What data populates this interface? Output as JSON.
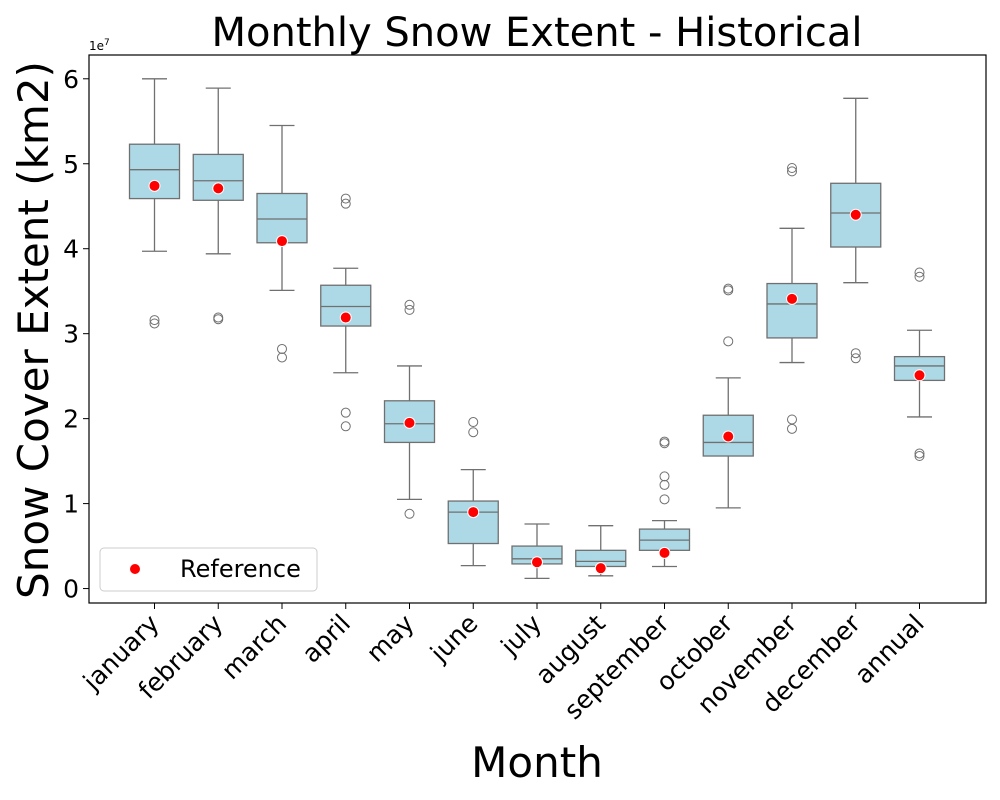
{
  "chart_data": {
    "type": "box",
    "title": "Monthly Snow Extent - Historical",
    "xlabel": "Month",
    "ylabel": "Snow Cover Extent (km2)",
    "y_multiplier": "1e7",
    "ylim": [
      -0.17,
      6.28
    ],
    "yticks": [
      0,
      1,
      2,
      3,
      4,
      5,
      6
    ],
    "grid": false,
    "legend": {
      "placement": "lower-left",
      "entries": [
        "Reference"
      ]
    },
    "colors": {
      "box_fill": "#add8e6",
      "box_edge": "#707070",
      "reference_marker": "#ff0000",
      "marker_edge": "#ffffff"
    },
    "categories": [
      "january",
      "february",
      "march",
      "april",
      "may",
      "june",
      "july",
      "august",
      "september",
      "october",
      "november",
      "december",
      "annual"
    ],
    "boxes": [
      {
        "whisker_low": 3.97,
        "q1": 4.59,
        "median": 4.93,
        "q3": 5.23,
        "whisker_high": 6.0,
        "outliers": [
          3.16,
          3.12
        ],
        "reference": 4.74
      },
      {
        "whisker_low": 3.94,
        "q1": 4.57,
        "median": 4.8,
        "q3": 5.11,
        "whisker_high": 5.89,
        "outliers": [
          3.19,
          3.17
        ],
        "reference": 4.71
      },
      {
        "whisker_low": 3.51,
        "q1": 4.07,
        "median": 4.35,
        "q3": 4.65,
        "whisker_high": 5.45,
        "outliers": [
          2.82,
          2.72
        ],
        "reference": 4.09
      },
      {
        "whisker_low": 2.54,
        "q1": 3.09,
        "median": 3.32,
        "q3": 3.57,
        "whisker_high": 3.77,
        "outliers": [
          4.59,
          4.53,
          2.07,
          1.91
        ],
        "reference": 3.19
      },
      {
        "whisker_low": 1.05,
        "q1": 1.72,
        "median": 1.94,
        "q3": 2.21,
        "whisker_high": 2.62,
        "outliers": [
          3.34,
          3.28,
          0.88
        ],
        "reference": 1.95
      },
      {
        "whisker_low": 0.27,
        "q1": 0.53,
        "median": 0.9,
        "q3": 1.03,
        "whisker_high": 1.4,
        "outliers": [
          1.96,
          1.84
        ],
        "reference": 0.9
      },
      {
        "whisker_low": 0.12,
        "q1": 0.29,
        "median": 0.35,
        "q3": 0.5,
        "whisker_high": 0.76,
        "outliers": [],
        "reference": 0.31
      },
      {
        "whisker_low": 0.15,
        "q1": 0.26,
        "median": 0.32,
        "q3": 0.45,
        "whisker_high": 0.74,
        "outliers": [],
        "reference": 0.24
      },
      {
        "whisker_low": 0.26,
        "q1": 0.45,
        "median": 0.57,
        "q3": 0.7,
        "whisker_high": 0.8,
        "outliers": [
          1.73,
          1.71,
          1.32,
          1.22,
          1.05
        ],
        "reference": 0.42
      },
      {
        "whisker_low": 0.95,
        "q1": 1.56,
        "median": 1.72,
        "q3": 2.04,
        "whisker_high": 2.48,
        "outliers": [
          3.53,
          3.51,
          2.91
        ],
        "reference": 1.79
      },
      {
        "whisker_low": 2.66,
        "q1": 2.95,
        "median": 3.35,
        "q3": 3.59,
        "whisker_high": 4.24,
        "outliers": [
          4.95,
          4.91,
          1.99,
          1.88
        ],
        "reference": 3.41
      },
      {
        "whisker_low": 3.6,
        "q1": 4.02,
        "median": 4.42,
        "q3": 4.77,
        "whisker_high": 5.77,
        "outliers": [
          2.77,
          2.71
        ],
        "reference": 4.4
      },
      {
        "whisker_low": 2.02,
        "q1": 2.45,
        "median": 2.62,
        "q3": 2.73,
        "whisker_high": 3.04,
        "outliers": [
          3.72,
          3.67,
          1.59,
          1.56
        ],
        "reference": 2.51
      }
    ]
  }
}
